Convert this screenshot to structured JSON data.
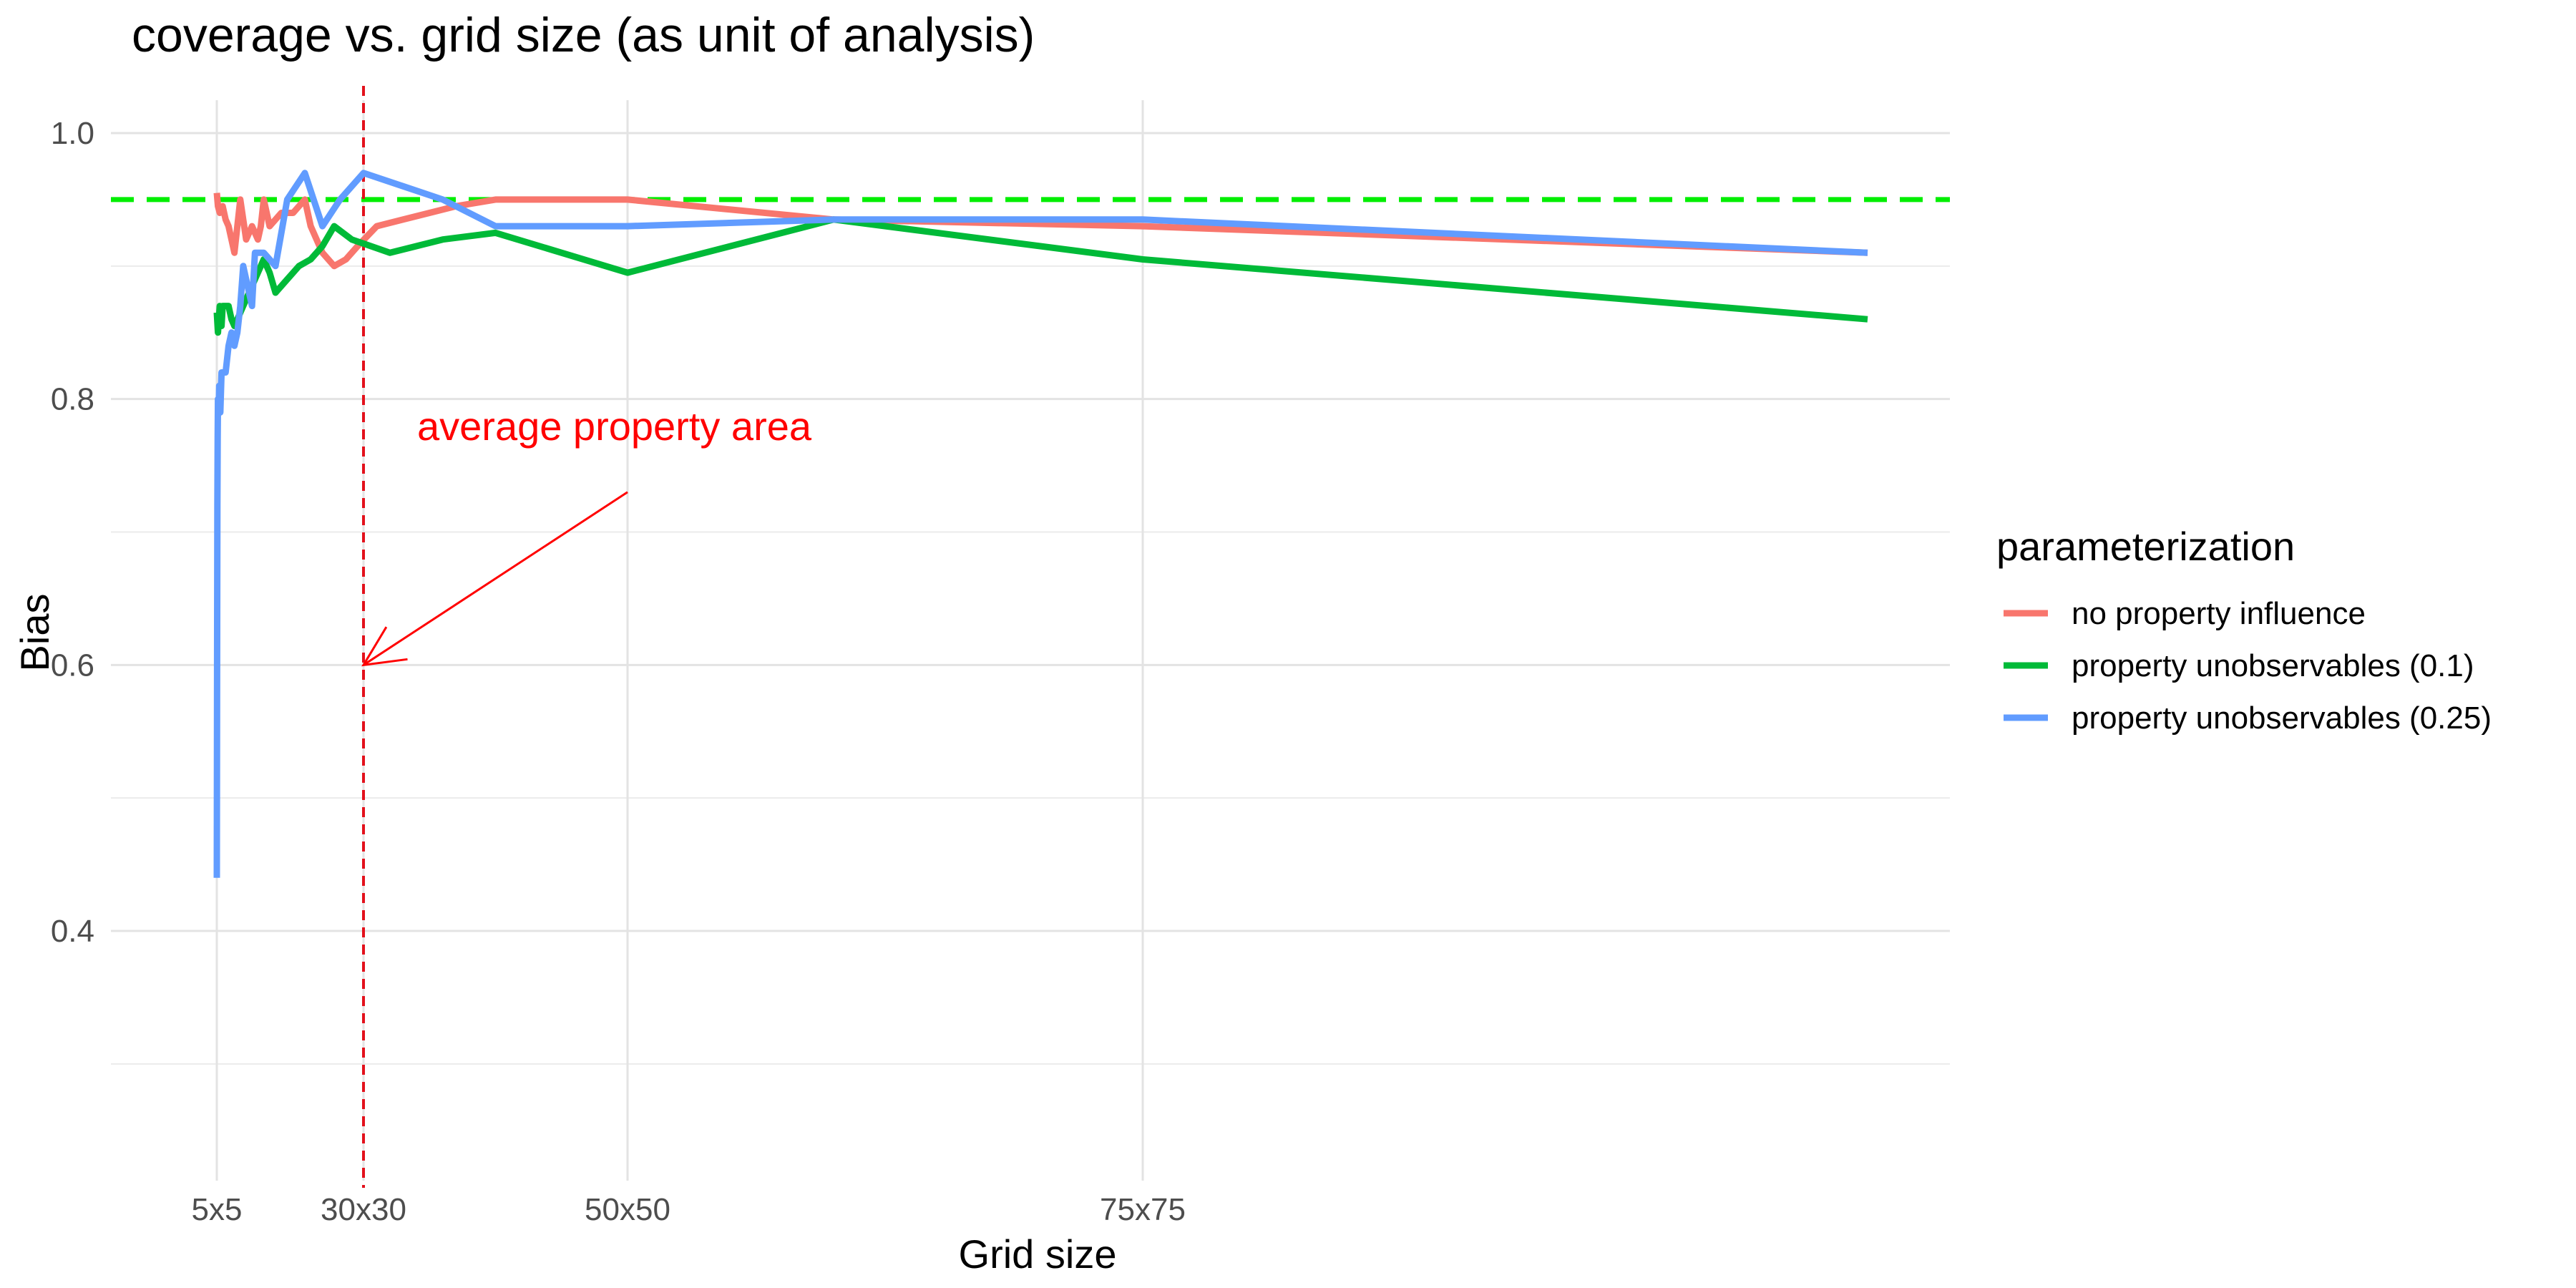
{
  "chart_data": {
    "type": "line",
    "title": "coverage vs. grid size (as unit of analysis)",
    "xlabel": "Grid size",
    "ylabel": "Bias",
    "x_ticks": [
      {
        "label": "5x5",
        "value": 5
      },
      {
        "label": "30x30",
        "value": 30
      },
      {
        "label": "50x50",
        "value": 50
      },
      {
        "label": "75x75",
        "value": 75
      }
    ],
    "y_ticks": [
      0.4,
      0.6,
      0.8,
      1.0
    ],
    "xlim": [
      0,
      86
    ],
    "ylim": [
      0.22,
      1.04
    ],
    "grid": true,
    "reference_lines": {
      "horizontal": {
        "y": 0.95,
        "color": "#00ee00",
        "style": "dashed"
      },
      "vertical": {
        "x": 30,
        "color": "#e3111c",
        "style": "dashed"
      }
    },
    "annotation": {
      "text": "average property area",
      "color": "#ff0000",
      "arrow_from": {
        "x": 50,
        "y": 0.73
      },
      "arrow_to": {
        "x": 30,
        "y": 0.6
      }
    },
    "legend": {
      "title": "parameterization",
      "position": "right"
    },
    "series": [
      {
        "name": "no property influence",
        "color": "#f8766d",
        "x": [
          5,
          5.2,
          5.5,
          6,
          6.5,
          7,
          7.5,
          8,
          8.5,
          9,
          9.5,
          10,
          11,
          11.5,
          12,
          12.5,
          13,
          14,
          15,
          16,
          17,
          18,
          19,
          20,
          21,
          23,
          25,
          27,
          29,
          31,
          33,
          35,
          37,
          40,
          43,
          46,
          50,
          60,
          75,
          110
        ],
        "y": [
          0.955,
          0.945,
          0.94,
          0.945,
          0.935,
          0.93,
          0.92,
          0.91,
          0.93,
          0.95,
          0.935,
          0.92,
          0.93,
          0.925,
          0.92,
          0.93,
          0.95,
          0.93,
          0.935,
          0.94,
          0.94,
          0.94,
          0.945,
          0.95,
          0.93,
          0.91,
          0.9,
          0.905,
          0.915,
          0.93,
          0.935,
          0.94,
          0.945,
          0.95,
          0.95,
          0.95,
          0.95,
          0.935,
          0.93,
          0.91
        ]
      },
      {
        "name": "property unobservables (0.1)",
        "color": "#00ba38",
        "x": [
          5,
          5.2,
          5.5,
          5.8,
          6,
          6.5,
          7,
          7.5,
          8,
          8.5,
          9,
          9.5,
          10,
          11,
          12,
          13,
          14,
          15,
          17,
          19,
          21,
          23,
          25,
          28,
          32,
          36,
          40,
          50,
          60,
          75,
          110
        ],
        "y": [
          0.865,
          0.85,
          0.87,
          0.855,
          0.87,
          0.87,
          0.87,
          0.86,
          0.855,
          0.86,
          0.865,
          0.87,
          0.875,
          0.885,
          0.895,
          0.905,
          0.895,
          0.88,
          0.89,
          0.9,
          0.905,
          0.915,
          0.93,
          0.92,
          0.91,
          0.92,
          0.925,
          0.895,
          0.935,
          0.905,
          0.86
        ]
      },
      {
        "name": "property unobservables (0.25)",
        "color": "#619cff",
        "x": [
          5,
          5.05,
          5.1,
          5.15,
          5.2,
          5.3,
          5.4,
          5.5,
          5.6,
          5.8,
          6,
          6.5,
          7,
          7.5,
          8,
          8.5,
          9,
          9.5,
          10,
          10.5,
          11,
          11.5,
          12,
          13,
          14,
          15,
          17,
          20,
          23,
          26,
          30,
          33,
          36,
          40,
          45,
          50,
          60,
          75,
          110
        ],
        "y": [
          0.44,
          0.6,
          0.72,
          0.77,
          0.8,
          0.79,
          0.81,
          0.8,
          0.79,
          0.82,
          0.82,
          0.82,
          0.84,
          0.85,
          0.84,
          0.85,
          0.87,
          0.9,
          0.89,
          0.88,
          0.87,
          0.91,
          0.91,
          0.91,
          0.905,
          0.9,
          0.95,
          0.97,
          0.93,
          0.95,
          0.97,
          0.96,
          0.95,
          0.93,
          0.93,
          0.93,
          0.935,
          0.935,
          0.91
        ]
      }
    ]
  }
}
